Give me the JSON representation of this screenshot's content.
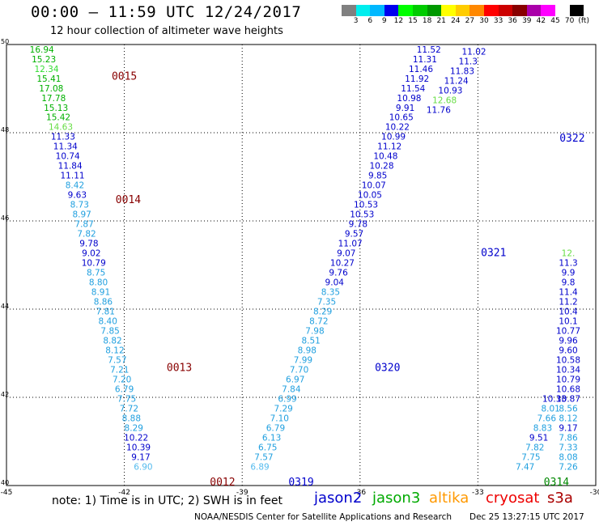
{
  "header": {
    "title": "00:00 – 11:59 UTC 12/24/2017",
    "subtitle": "12 hour collection of altimeter wave heights"
  },
  "colorbar": {
    "colors": [
      "#808080",
      "#00eeee",
      "#00b8ff",
      "#0000ee",
      "#00ff00",
      "#00cc00",
      "#009900",
      "#ffff00",
      "#ffcc00",
      "#ff8800",
      "#ff0000",
      "#cc0000",
      "#880000",
      "#aa00aa",
      "#ff00ff",
      "#ffffff",
      "#000000"
    ],
    "labels": [
      "3",
      "6",
      "9",
      "12",
      "15",
      "18",
      "21",
      "24",
      "27",
      "30",
      "33",
      "36",
      "39",
      "42",
      "45",
      "70",
      "(ft)"
    ]
  },
  "axes": {
    "lon_ticks": [
      "-45",
      "-42",
      "-39",
      "-36",
      "-33",
      "-30"
    ],
    "lat_ticks": [
      "50",
      "48",
      "46",
      "44",
      "42",
      "40"
    ],
    "lon_range": [
      -45,
      -30
    ],
    "lat_range": [
      40,
      50
    ]
  },
  "passes": [
    {
      "id": "0015",
      "sat": "jason3",
      "lon": -42.0,
      "lat": 49.2,
      "color": "#880000"
    },
    {
      "id": "0014",
      "sat": "jason2",
      "lon": -41.9,
      "lat": 46.4,
      "color": "#880000"
    },
    {
      "id": "0013",
      "sat": "jason2",
      "lon": -40.6,
      "lat": 42.6,
      "color": "#880000"
    },
    {
      "id": "0012",
      "sat": "jason2",
      "lon": -39.5,
      "lat": 40.0,
      "color": "#880000"
    },
    {
      "id": "0319",
      "sat": "jason2",
      "lon": -37.5,
      "lat": 40.0,
      "color": "#0000cc"
    },
    {
      "id": "0320",
      "sat": "jason2",
      "lon": -35.3,
      "lat": 42.6,
      "color": "#0000cc"
    },
    {
      "id": "0321",
      "sat": "jason2",
      "lon": -32.6,
      "lat": 45.2,
      "color": "#0000cc"
    },
    {
      "id": "0322",
      "sat": "jason2",
      "lon": -30.6,
      "lat": 47.8,
      "color": "#0000cc"
    },
    {
      "id": "0314",
      "sat": "jason3",
      "lon": -31.0,
      "lat": 40.0,
      "color": "#008800"
    }
  ],
  "tracks": [
    {
      "name": "track-0015-0012",
      "points": [
        {
          "lon": -44.1,
          "lat": 49.82,
          "v": "16.94",
          "c": "#00b000"
        },
        {
          "lon": -44.05,
          "lat": 49.6,
          "v": "15.23",
          "c": "#00b000"
        },
        {
          "lon": -43.98,
          "lat": 49.38,
          "v": "12.34",
          "c": "#33dd33"
        },
        {
          "lon": -43.92,
          "lat": 49.16,
          "v": "15.41",
          "c": "#00b000"
        },
        {
          "lon": -43.86,
          "lat": 48.94,
          "v": "17.08",
          "c": "#00b000"
        },
        {
          "lon": -43.8,
          "lat": 48.72,
          "v": "17.78",
          "c": "#00b000"
        },
        {
          "lon": -43.74,
          "lat": 48.5,
          "v": "15.13",
          "c": "#00b000"
        },
        {
          "lon": -43.68,
          "lat": 48.28,
          "v": "15.42",
          "c": "#00b000"
        },
        {
          "lon": -43.62,
          "lat": 48.06,
          "v": "14.63",
          "c": "#66dd44"
        },
        {
          "lon": -43.56,
          "lat": 47.84,
          "v": "11.33",
          "c": "#0000cc"
        },
        {
          "lon": -43.5,
          "lat": 47.62,
          "v": "11.34",
          "c": "#0000cc"
        },
        {
          "lon": -43.44,
          "lat": 47.4,
          "v": "10.74",
          "c": "#0000cc"
        },
        {
          "lon": -43.38,
          "lat": 47.18,
          "v": "11.84",
          "c": "#0000cc"
        },
        {
          "lon": -43.32,
          "lat": 46.96,
          "v": "11.11",
          "c": "#0000cc"
        },
        {
          "lon": -43.26,
          "lat": 46.74,
          "v": "8.42",
          "c": "#1f9fdf"
        },
        {
          "lon": -43.2,
          "lat": 46.52,
          "v": "9.63",
          "c": "#0000cc"
        },
        {
          "lon": -43.14,
          "lat": 46.3,
          "v": "8.73",
          "c": "#1f9fdf"
        },
        {
          "lon": -43.08,
          "lat": 46.08,
          "v": "8.97",
          "c": "#1f9fdf"
        },
        {
          "lon": -43.02,
          "lat": 45.86,
          "v": "7.87",
          "c": "#1f9fdf"
        },
        {
          "lon": -42.96,
          "lat": 45.64,
          "v": "7.82",
          "c": "#1f9fdf"
        },
        {
          "lon": -42.9,
          "lat": 45.42,
          "v": "9.78",
          "c": "#0000cc"
        },
        {
          "lon": -42.84,
          "lat": 45.2,
          "v": "9.02",
          "c": "#0000cc"
        },
        {
          "lon": -42.78,
          "lat": 44.98,
          "v": "10.79",
          "c": "#0000cc"
        },
        {
          "lon": -42.72,
          "lat": 44.76,
          "v": "8.75",
          "c": "#1f9fdf"
        },
        {
          "lon": -42.66,
          "lat": 44.54,
          "v": "8.80",
          "c": "#1f9fdf"
        },
        {
          "lon": -42.6,
          "lat": 44.32,
          "v": "8.91",
          "c": "#1f9fdf"
        },
        {
          "lon": -42.54,
          "lat": 44.1,
          "v": "8.86",
          "c": "#1f9fdf"
        },
        {
          "lon": -42.48,
          "lat": 43.88,
          "v": "7.81",
          "c": "#1f9fdf"
        },
        {
          "lon": -42.42,
          "lat": 43.66,
          "v": "8.40",
          "c": "#1f9fdf"
        },
        {
          "lon": -42.36,
          "lat": 43.44,
          "v": "7.85",
          "c": "#1f9fdf"
        },
        {
          "lon": -42.3,
          "lat": 43.22,
          "v": "8.82",
          "c": "#1f9fdf"
        },
        {
          "lon": -42.24,
          "lat": 43.0,
          "v": "8.12",
          "c": "#1f9fdf"
        },
        {
          "lon": -42.18,
          "lat": 42.78,
          "v": "7.57",
          "c": "#1f9fdf"
        },
        {
          "lon": -42.12,
          "lat": 42.56,
          "v": "7.21",
          "c": "#1f9fdf"
        },
        {
          "lon": -42.06,
          "lat": 42.34,
          "v": "7.20",
          "c": "#1f9fdf"
        },
        {
          "lon": -42.0,
          "lat": 42.12,
          "v": "6.79",
          "c": "#1f9fdf"
        },
        {
          "lon": -41.94,
          "lat": 41.9,
          "v": "7.75",
          "c": "#1f9fdf"
        },
        {
          "lon": -41.88,
          "lat": 41.68,
          "v": "7.72",
          "c": "#1f9fdf"
        },
        {
          "lon": -41.82,
          "lat": 41.46,
          "v": "8.88",
          "c": "#1f9fdf"
        },
        {
          "lon": -41.76,
          "lat": 41.24,
          "v": "8.29",
          "c": "#1f9fdf"
        },
        {
          "lon": -41.7,
          "lat": 41.02,
          "v": "10.22",
          "c": "#0000cc"
        },
        {
          "lon": -41.64,
          "lat": 40.8,
          "v": "10.39",
          "c": "#0000cc"
        },
        {
          "lon": -41.58,
          "lat": 40.58,
          "v": "9.17",
          "c": "#0000cc"
        },
        {
          "lon": -41.52,
          "lat": 40.36,
          "v": "6.90",
          "c": "#55bbee"
        }
      ]
    },
    {
      "name": "track-0319-0322",
      "points": [
        {
          "lon": -38.55,
          "lat": 40.36,
          "v": "6.89",
          "c": "#55bbee"
        },
        {
          "lon": -38.45,
          "lat": 40.58,
          "v": "7.57",
          "c": "#1f9fdf"
        },
        {
          "lon": -38.35,
          "lat": 40.8,
          "v": "6.75",
          "c": "#1f9fdf"
        },
        {
          "lon": -38.25,
          "lat": 41.02,
          "v": "6.13",
          "c": "#1f9fdf"
        },
        {
          "lon": -38.15,
          "lat": 41.24,
          "v": "6.79",
          "c": "#1f9fdf"
        },
        {
          "lon": -38.05,
          "lat": 41.46,
          "v": "7.10",
          "c": "#1f9fdf"
        },
        {
          "lon": -37.95,
          "lat": 41.68,
          "v": "7.29",
          "c": "#1f9fdf"
        },
        {
          "lon": -37.85,
          "lat": 41.9,
          "v": "6.99",
          "c": "#1f9fdf"
        },
        {
          "lon": -37.75,
          "lat": 42.12,
          "v": "7.84",
          "c": "#1f9fdf"
        },
        {
          "lon": -37.65,
          "lat": 42.34,
          "v": "6.97",
          "c": "#1f9fdf"
        },
        {
          "lon": -37.55,
          "lat": 42.56,
          "v": "7.70",
          "c": "#1f9fdf"
        },
        {
          "lon": -37.45,
          "lat": 42.78,
          "v": "7.99",
          "c": "#1f9fdf"
        },
        {
          "lon": -37.35,
          "lat": 43.0,
          "v": "8.98",
          "c": "#1f9fdf"
        },
        {
          "lon": -37.25,
          "lat": 43.22,
          "v": "8.51",
          "c": "#1f9fdf"
        },
        {
          "lon": -37.15,
          "lat": 43.44,
          "v": "7.98",
          "c": "#1f9fdf"
        },
        {
          "lon": -37.05,
          "lat": 43.66,
          "v": "8.72",
          "c": "#1f9fdf"
        },
        {
          "lon": -36.95,
          "lat": 43.88,
          "v": "8.29",
          "c": "#1f9fdf"
        },
        {
          "lon": -36.85,
          "lat": 44.1,
          "v": "7.35",
          "c": "#1f9fdf"
        },
        {
          "lon": -36.75,
          "lat": 44.32,
          "v": "8.35",
          "c": "#1f9fdf"
        },
        {
          "lon": -36.65,
          "lat": 44.54,
          "v": "9.04",
          "c": "#0000cc"
        },
        {
          "lon": -36.55,
          "lat": 44.76,
          "v": "9.76",
          "c": "#0000cc"
        },
        {
          "lon": -36.45,
          "lat": 44.98,
          "v": "10.27",
          "c": "#0000cc"
        },
        {
          "lon": -36.35,
          "lat": 45.2,
          "v": "9.07",
          "c": "#0000cc"
        },
        {
          "lon": -36.25,
          "lat": 45.42,
          "v": "11.07",
          "c": "#0000cc"
        },
        {
          "lon": -36.15,
          "lat": 45.64,
          "v": "9.57",
          "c": "#0000cc"
        },
        {
          "lon": -36.05,
          "lat": 45.86,
          "v": "9.78",
          "c": "#0000cc"
        },
        {
          "lon": -35.95,
          "lat": 46.08,
          "v": "10.53",
          "c": "#0000cc"
        },
        {
          "lon": -35.85,
          "lat": 46.3,
          "v": "10.53",
          "c": "#0000cc"
        },
        {
          "lon": -35.75,
          "lat": 46.52,
          "v": "10.05",
          "c": "#0000cc"
        },
        {
          "lon": -35.65,
          "lat": 46.74,
          "v": "10.07",
          "c": "#0000cc"
        },
        {
          "lon": -35.55,
          "lat": 46.96,
          "v": "9.85",
          "c": "#0000cc"
        },
        {
          "lon": -35.45,
          "lat": 47.18,
          "v": "10.28",
          "c": "#0000cc"
        },
        {
          "lon": -35.35,
          "lat": 47.4,
          "v": "10.48",
          "c": "#0000cc"
        },
        {
          "lon": -35.25,
          "lat": 47.62,
          "v": "11.12",
          "c": "#0000cc"
        },
        {
          "lon": -35.15,
          "lat": 47.84,
          "v": "10.99",
          "c": "#0000cc"
        },
        {
          "lon": -35.05,
          "lat": 48.06,
          "v": "10.22",
          "c": "#0000cc"
        },
        {
          "lon": -34.95,
          "lat": 48.28,
          "v": "10.65",
          "c": "#0000cc"
        },
        {
          "lon": -34.85,
          "lat": 48.5,
          "v": "9.91",
          "c": "#0000cc"
        },
        {
          "lon": -34.75,
          "lat": 48.72,
          "v": "10.98",
          "c": "#0000cc"
        },
        {
          "lon": -34.65,
          "lat": 48.94,
          "v": "11.54",
          "c": "#0000cc"
        },
        {
          "lon": -34.55,
          "lat": 49.16,
          "v": "11.92",
          "c": "#0000cc"
        },
        {
          "lon": -34.45,
          "lat": 49.38,
          "v": "11.46",
          "c": "#0000cc"
        },
        {
          "lon": -34.35,
          "lat": 49.6,
          "v": "11.31",
          "c": "#0000cc"
        },
        {
          "lon": -34.25,
          "lat": 49.82,
          "v": "11.52",
          "c": "#0000cc"
        }
      ]
    },
    {
      "name": "track-0322-upper",
      "points": [
        {
          "lon": -34.0,
          "lat": 48.45,
          "v": "11.76",
          "c": "#0000cc"
        },
        {
          "lon": -33.85,
          "lat": 48.67,
          "v": "12.68",
          "c": "#66dd44"
        },
        {
          "lon": -33.7,
          "lat": 48.89,
          "v": "10.93",
          "c": "#0000cc"
        },
        {
          "lon": -33.55,
          "lat": 49.11,
          "v": "11.24",
          "c": "#0000cc"
        },
        {
          "lon": -33.4,
          "lat": 49.33,
          "v": "11.83",
          "c": "#0000cc"
        },
        {
          "lon": -33.25,
          "lat": 49.55,
          "v": "11.3",
          "c": "#0000cc"
        },
        {
          "lon": -33.1,
          "lat": 49.77,
          "v": "11.02",
          "c": "#0000cc"
        }
      ]
    },
    {
      "name": "track-0314",
      "points": [
        {
          "lon": -31.8,
          "lat": 40.36,
          "v": "7.47",
          "c": "#1f9fdf"
        },
        {
          "lon": -31.65,
          "lat": 40.58,
          "v": "7.75",
          "c": "#1f9fdf"
        },
        {
          "lon": -31.55,
          "lat": 40.8,
          "v": "7.82",
          "c": "#1f9fdf"
        },
        {
          "lon": -31.45,
          "lat": 41.02,
          "v": "9.51",
          "c": "#0000cc"
        },
        {
          "lon": -31.35,
          "lat": 41.24,
          "v": "8.83",
          "c": "#1f9fdf"
        },
        {
          "lon": -31.25,
          "lat": 41.46,
          "v": "7.66",
          "c": "#1f9fdf"
        },
        {
          "lon": -31.15,
          "lat": 41.68,
          "v": "8.01",
          "c": "#1f9fdf"
        },
        {
          "lon": -31.05,
          "lat": 41.9,
          "v": "10.33",
          "c": "#0000cc"
        },
        {
          "lon": -30.7,
          "lat": 40.36,
          "v": "7.26",
          "c": "#1f9fdf"
        },
        {
          "lon": -30.7,
          "lat": 40.58,
          "v": "8.08",
          "c": "#1f9fdf"
        },
        {
          "lon": -30.7,
          "lat": 40.8,
          "v": "7.33",
          "c": "#1f9fdf"
        },
        {
          "lon": -30.7,
          "lat": 41.02,
          "v": "7.86",
          "c": "#1f9fdf"
        },
        {
          "lon": -30.7,
          "lat": 41.24,
          "v": "9.17",
          "c": "#0000cc"
        },
        {
          "lon": -30.7,
          "lat": 41.46,
          "v": "8.12",
          "c": "#1f9fdf"
        },
        {
          "lon": -30.7,
          "lat": 41.68,
          "v": "8.56",
          "c": "#1f9fdf"
        },
        {
          "lon": -30.7,
          "lat": 41.9,
          "v": "10.87",
          "c": "#0000cc"
        },
        {
          "lon": -30.7,
          "lat": 42.12,
          "v": "10.68",
          "c": "#0000cc"
        },
        {
          "lon": -30.7,
          "lat": 42.34,
          "v": "10.79",
          "c": "#0000cc"
        },
        {
          "lon": -30.7,
          "lat": 42.56,
          "v": "10.34",
          "c": "#0000cc"
        },
        {
          "lon": -30.7,
          "lat": 42.78,
          "v": "10.58",
          "c": "#0000cc"
        },
        {
          "lon": -30.7,
          "lat": 43.0,
          "v": "9.60",
          "c": "#0000cc"
        },
        {
          "lon": -30.7,
          "lat": 43.22,
          "v": "9.96",
          "c": "#0000cc"
        },
        {
          "lon": -30.7,
          "lat": 43.44,
          "v": "10.77",
          "c": "#0000cc"
        },
        {
          "lon": -30.7,
          "lat": 43.66,
          "v": "10.1",
          "c": "#0000cc"
        },
        {
          "lon": -30.7,
          "lat": 43.88,
          "v": "10.4",
          "c": "#0000cc"
        },
        {
          "lon": -30.7,
          "lat": 44.1,
          "v": "11.2",
          "c": "#0000cc"
        },
        {
          "lon": -30.7,
          "lat": 44.32,
          "v": "11.4",
          "c": "#0000cc"
        },
        {
          "lon": -30.7,
          "lat": 44.54,
          "v": "9.8",
          "c": "#0000cc"
        },
        {
          "lon": -30.7,
          "lat": 44.76,
          "v": "9.9",
          "c": "#0000cc"
        },
        {
          "lon": -30.7,
          "lat": 44.98,
          "v": "11.3",
          "c": "#0000cc"
        },
        {
          "lon": -30.7,
          "lat": 45.2,
          "v": "12.",
          "c": "#66dd44"
        }
      ]
    }
  ],
  "note": "note: 1) Time is in UTC; 2) SWH is in feet",
  "legend": [
    {
      "label": "jason2",
      "color": "#0000cc"
    },
    {
      "label": "jason3",
      "color": "#00aa00"
    },
    {
      "label": "altika",
      "color": "#ff9900"
    },
    {
      "label": "cryosat",
      "color": "#ee0000"
    },
    {
      "label": "s3a",
      "color": "#aa0000"
    }
  ],
  "footer": {
    "credit": "NOAA/NESDIS Center for Satellite Applications and Research",
    "timestamp": "Dec 25 13:27:15 UTC 2017"
  }
}
